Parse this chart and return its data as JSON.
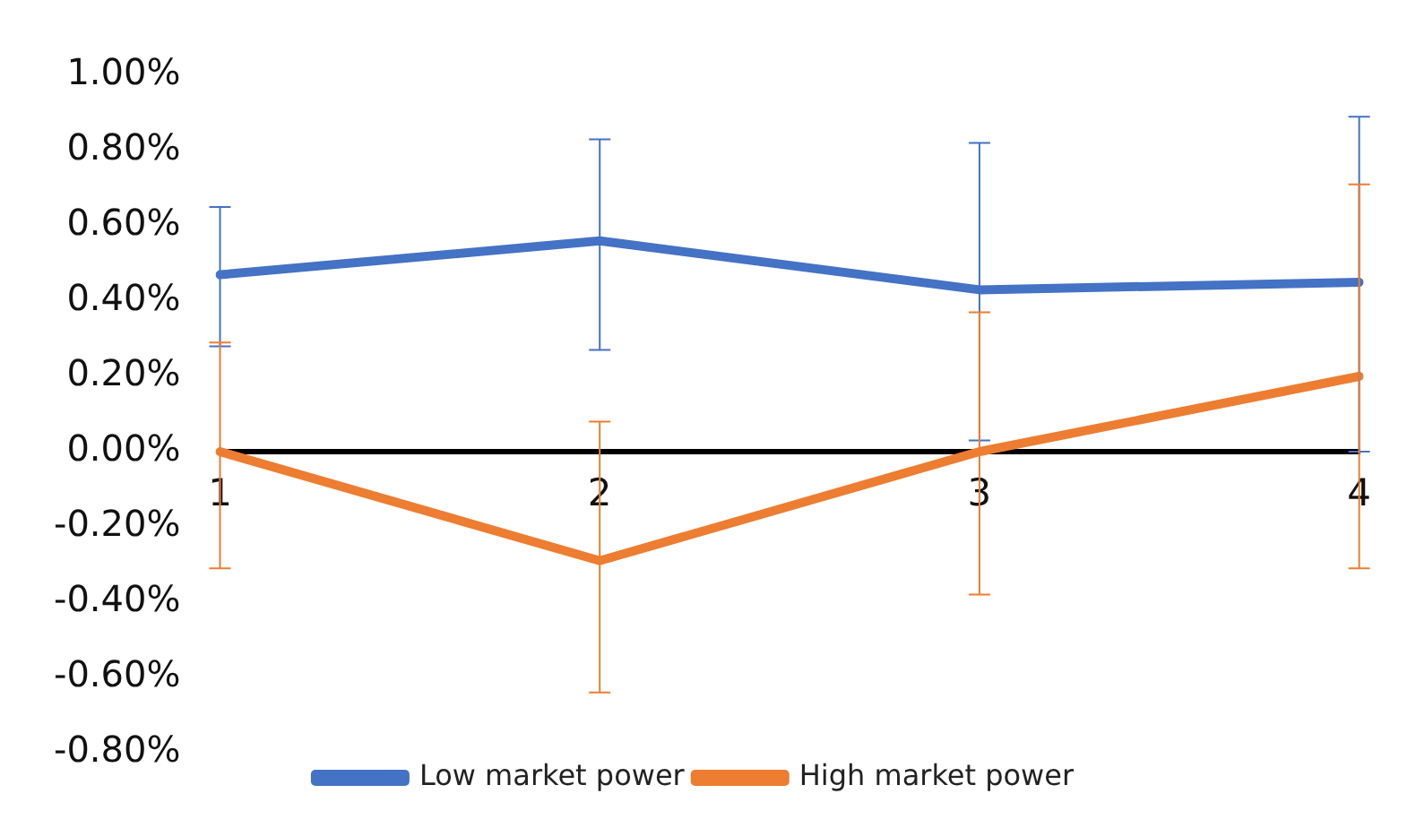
{
  "chart_data": {
    "type": "line",
    "categories": [
      "1",
      "2",
      "3",
      "4"
    ],
    "series": [
      {
        "name": "Low market power",
        "color": "#4472c4",
        "values": [
          0.47,
          0.56,
          0.43,
          0.45
        ],
        "errors": [
          [
            0.28,
            0.65
          ],
          [
            0.27,
            0.83
          ],
          [
            0.03,
            0.82
          ],
          [
            0.0,
            0.89
          ]
        ]
      },
      {
        "name": "High market power",
        "color": "#ed7d31",
        "values": [
          0.0,
          -0.29,
          0.0,
          0.2
        ],
        "errors": [
          [
            -0.31,
            0.29
          ],
          [
            -0.64,
            0.08
          ],
          [
            -0.38,
            0.37
          ],
          [
            -0.31,
            0.71
          ]
        ]
      }
    ],
    "ylim": [
      -0.8,
      1.0
    ],
    "yticks": [
      {
        "value": -0.8,
        "label": "-0.80%"
      },
      {
        "value": -0.6,
        "label": "-0.60%"
      },
      {
        "value": -0.4,
        "label": "-0.40%"
      },
      {
        "value": -0.2,
        "label": "-0.20%"
      },
      {
        "value": 0,
        "label": "0.00%"
      },
      {
        "value": 0.2,
        "label": "0.20%"
      },
      {
        "value": 0.4,
        "label": "0.40%"
      },
      {
        "value": 0.6,
        "label": "0.60%"
      },
      {
        "value": 0.8,
        "label": "0.80%"
      },
      {
        "value": 1.0,
        "label": "1.00%"
      }
    ],
    "grid": false,
    "legend": "bottom",
    "marker": "none",
    "line_style": "solid"
  }
}
